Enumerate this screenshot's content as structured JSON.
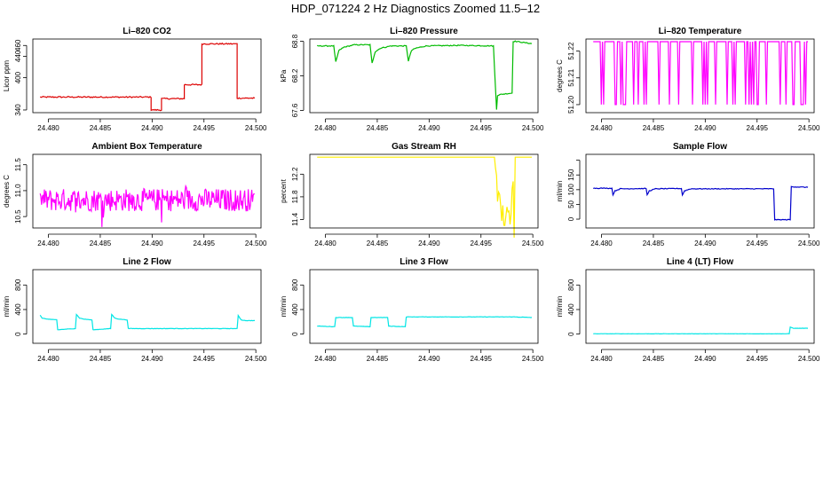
{
  "page_title": "HDP_071224  2 Hz Diagnostics Zoomed 11.5–12",
  "chart_data": [
    {
      "type": "line",
      "title": "Li–820 CO2",
      "ylabel": "Licor ppm",
      "color": "#dd0000",
      "xlim": [
        24.4785,
        24.5005
      ],
      "ylim": [
        335,
        472
      ],
      "xticks": [
        24.48,
        24.485,
        24.49,
        24.495,
        24.5
      ],
      "xtick_labels": [
        "24.480",
        "24.485",
        "24.490",
        "24.495",
        "24.500"
      ],
      "yticks": [
        340,
        400,
        440,
        460
      ],
      "ytick_labels": [
        "340",
        "400",
        "440",
        "460"
      ],
      "style": "step",
      "noise": 1.2,
      "x": [
        24.4792,
        24.4899,
        24.4899,
        24.4909,
        24.4909,
        24.4931,
        24.4931,
        24.4948,
        24.4948,
        24.4982,
        24.4982,
        24.4999
      ],
      "y": [
        364,
        364,
        340,
        340,
        361,
        361,
        387,
        387,
        463,
        463,
        362,
        362
      ]
    },
    {
      "type": "line",
      "title": "Li–820 Pressure",
      "ylabel": "kPa",
      "color": "#00bb00",
      "xlim": [
        24.4785,
        24.5005
      ],
      "ylim": [
        67.56,
        68.84
      ],
      "xticks": [
        24.48,
        24.485,
        24.49,
        24.495,
        24.5
      ],
      "xtick_labels": [
        "24.480",
        "24.485",
        "24.490",
        "24.495",
        "24.500"
      ],
      "yticks": [
        67.6,
        68.2,
        68.8
      ],
      "ytick_labels": [
        "67.6",
        "68.2",
        "68.8"
      ],
      "style": "line",
      "noise": 0.008,
      "x": [
        24.4792,
        24.4808,
        24.481,
        24.4813,
        24.4818,
        24.4828,
        24.4843,
        24.4845,
        24.4848,
        24.4853,
        24.4863,
        24.4878,
        24.488,
        24.4883,
        24.4887,
        24.4897,
        24.493,
        24.4962,
        24.4965,
        24.4966,
        24.497,
        24.498,
        24.4981,
        24.4983,
        24.4999
      ],
      "y": [
        68.72,
        68.72,
        68.44,
        68.64,
        68.7,
        68.74,
        68.74,
        68.42,
        68.62,
        68.68,
        68.72,
        68.72,
        68.46,
        68.64,
        68.68,
        68.72,
        68.73,
        68.72,
        67.62,
        67.86,
        67.88,
        67.9,
        68.8,
        68.8,
        68.76
      ]
    },
    {
      "type": "line",
      "title": "Li–820 Temperature",
      "ylabel": "degrees C",
      "color": "#ff00ff",
      "xlim": [
        24.4785,
        24.5005
      ],
      "ylim": [
        51.197,
        51.2245
      ],
      "xticks": [
        24.48,
        24.485,
        24.49,
        24.495,
        24.5
      ],
      "xtick_labels": [
        "24.480",
        "24.485",
        "24.490",
        "24.495",
        "24.500"
      ],
      "yticks": [
        51.2,
        51.21,
        51.22
      ],
      "ytick_labels": [
        "51.20",
        "51.21",
        "51.22"
      ],
      "style": "toggle",
      "levels": [
        51.2,
        51.2235
      ],
      "upper_prob": 0.82,
      "x": [
        24.4792,
        24.4999
      ],
      "y": [
        51.2235,
        51.2235
      ]
    },
    {
      "type": "line",
      "title": "Ambient Box Temperature",
      "ylabel": "degrees C",
      "color": "#ff00ff",
      "xlim": [
        24.4785,
        24.5005
      ],
      "ylim": [
        10.28,
        11.7
      ],
      "xticks": [
        24.48,
        24.485,
        24.49,
        24.495,
        24.5
      ],
      "xtick_labels": [
        "24.480",
        "24.485",
        "24.490",
        "24.495",
        "24.500"
      ],
      "yticks": [
        10.5,
        11.0,
        11.5
      ],
      "ytick_labels": [
        "10.5",
        "11.0",
        "11.5"
      ],
      "style": "noisy",
      "noise": 0.22,
      "x": [
        24.4792,
        24.4999
      ],
      "y": [
        10.82,
        10.82
      ]
    },
    {
      "type": "line",
      "title": "Gas Stream RH",
      "ylabel": "percent",
      "color": "#ffee00",
      "xlim": [
        24.4785,
        24.5005
      ],
      "ylim": [
        11.25,
        12.55
      ],
      "xticks": [
        24.48,
        24.485,
        24.49,
        24.495,
        24.5
      ],
      "xtick_labels": [
        "24.480",
        "24.485",
        "24.490",
        "24.495",
        "24.500"
      ],
      "yticks": [
        11.4,
        11.8,
        12.2
      ],
      "ytick_labels": [
        "11.4",
        "11.8",
        "12.2"
      ],
      "style": "line",
      "noise": 0.0,
      "x": [
        24.4792,
        24.4963,
        24.4964,
        24.4967,
        24.497,
        24.4973,
        24.4976,
        24.4979,
        24.498,
        24.4981,
        24.4982,
        24.4983,
        24.4999
      ],
      "y": [
        12.5,
        12.5,
        12.45,
        11.7,
        11.5,
        11.45,
        11.4,
        11.35,
        12.1,
        12.3,
        11.3,
        12.5,
        12.5
      ],
      "noise_range": [
        24.4964,
        24.4982
      ],
      "noise_band": 0.25
    },
    {
      "type": "line",
      "title": "Sample Flow",
      "ylabel": "ml/min",
      "color": "#0000cc",
      "xlim": [
        24.4785,
        24.5005
      ],
      "ylim": [
        -30,
        220
      ],
      "xticks": [
        24.48,
        24.485,
        24.49,
        24.495,
        24.5
      ],
      "xtick_labels": [
        "24.480",
        "24.485",
        "24.490",
        "24.495",
        "24.500"
      ],
      "yticks": [
        0,
        50,
        100,
        150,
        200
      ],
      "ytick_labels": [
        "0",
        "50",
        "100",
        "150",
        ""
      ],
      "style": "line",
      "noise": 1.2,
      "x": [
        24.4792,
        24.481,
        24.4811,
        24.4813,
        24.4818,
        24.4843,
        24.4844,
        24.4846,
        24.4852,
        24.4877,
        24.4878,
        24.488,
        24.4886,
        24.4966,
        24.4967,
        24.4982,
        24.4983,
        24.4999
      ],
      "y": [
        105,
        105,
        82,
        96,
        103,
        104,
        82,
        96,
        103,
        104,
        82,
        96,
        103,
        103,
        -2,
        -2,
        110,
        108
      ]
    },
    {
      "type": "line",
      "title": "Line 2 Flow",
      "ylabel": "ml/min",
      "color": "#00e5e5",
      "xlim": [
        24.4785,
        24.5005
      ],
      "ylim": [
        -150,
        1050
      ],
      "xticks": [
        24.48,
        24.485,
        24.49,
        24.495,
        24.5
      ],
      "xtick_labels": [
        "24.480",
        "24.485",
        "24.490",
        "24.495",
        "24.500"
      ],
      "yticks": [
        0,
        400,
        800
      ],
      "ytick_labels": [
        "0",
        "400",
        "800"
      ],
      "style": "line",
      "noise": 3,
      "x": [
        24.4792,
        24.4794,
        24.48,
        24.4808,
        24.4809,
        24.4826,
        24.4827,
        24.483,
        24.4834,
        24.4842,
        24.4843,
        24.486,
        24.4861,
        24.4864,
        24.4868,
        24.4876,
        24.4877,
        24.4982,
        24.4983,
        24.4986,
        24.499,
        24.4999
      ],
      "y": [
        310,
        260,
        240,
        235,
        70,
        90,
        320,
        260,
        245,
        230,
        70,
        90,
        320,
        260,
        245,
        230,
        90,
        90,
        300,
        230,
        220,
        220
      ]
    },
    {
      "type": "line",
      "title": "Line 3 Flow",
      "ylabel": "ml/min",
      "color": "#00e5e5",
      "xlim": [
        24.4785,
        24.5005
      ],
      "ylim": [
        -150,
        1050
      ],
      "xticks": [
        24.48,
        24.485,
        24.49,
        24.495,
        24.5
      ],
      "xtick_labels": [
        "24.480",
        "24.485",
        "24.490",
        "24.495",
        "24.500"
      ],
      "yticks": [
        0,
        400,
        800
      ],
      "ytick_labels": [
        "0",
        "400",
        "800"
      ],
      "style": "line",
      "noise": 3,
      "x": [
        24.4792,
        24.4809,
        24.481,
        24.4826,
        24.4827,
        24.4843,
        24.4844,
        24.486,
        24.4861,
        24.4877,
        24.4878,
        24.4982,
        24.4999
      ],
      "y": [
        130,
        120,
        270,
        270,
        130,
        120,
        270,
        270,
        130,
        120,
        280,
        280,
        270
      ]
    },
    {
      "type": "line",
      "title": "Line 4 (LT) Flow",
      "ylabel": "ml/min",
      "color": "#00e5e5",
      "xlim": [
        24.4785,
        24.5005
      ],
      "ylim": [
        -150,
        1050
      ],
      "xticks": [
        24.48,
        24.485,
        24.49,
        24.495,
        24.5
      ],
      "xtick_labels": [
        "24.480",
        "24.485",
        "24.490",
        "24.495",
        "24.500"
      ],
      "yticks": [
        0,
        400,
        800
      ],
      "ytick_labels": [
        "0",
        "400",
        "800"
      ],
      "style": "line",
      "noise": 2,
      "x": [
        24.4792,
        24.4981,
        24.4982,
        24.4985,
        24.4999
      ],
      "y": [
        5,
        5,
        115,
        95,
        95
      ]
    }
  ]
}
